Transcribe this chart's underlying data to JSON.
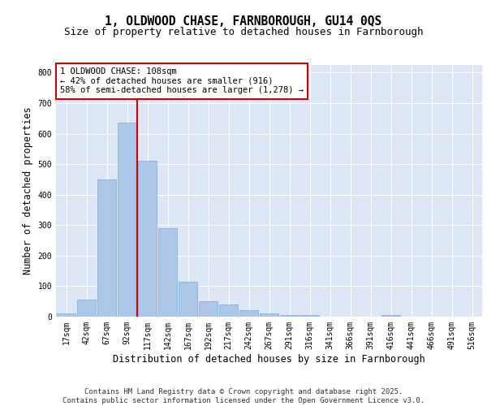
{
  "title_line1": "1, OLDWOOD CHASE, FARNBOROUGH, GU14 0QS",
  "title_line2": "Size of property relative to detached houses in Farnborough",
  "xlabel": "Distribution of detached houses by size in Farnborough",
  "ylabel": "Number of detached properties",
  "bar_color": "#aec6e8",
  "bar_edge_color": "#7baad4",
  "bg_color": "#dce6f5",
  "grid_color": "#ffffff",
  "categories": [
    "17sqm",
    "42sqm",
    "67sqm",
    "92sqm",
    "117sqm",
    "142sqm",
    "167sqm",
    "192sqm",
    "217sqm",
    "242sqm",
    "267sqm",
    "291sqm",
    "316sqm",
    "341sqm",
    "366sqm",
    "391sqm",
    "416sqm",
    "441sqm",
    "466sqm",
    "491sqm",
    "516sqm"
  ],
  "values": [
    10,
    55,
    450,
    635,
    510,
    290,
    115,
    50,
    40,
    20,
    10,
    5,
    5,
    0,
    0,
    0,
    5,
    0,
    0,
    0,
    0
  ],
  "ylim": [
    0,
    825
  ],
  "yticks": [
    0,
    100,
    200,
    300,
    400,
    500,
    600,
    700,
    800
  ],
  "vline_x": 3.5,
  "vline_color": "#cc0000",
  "annotation_text": "1 OLDWOOD CHASE: 108sqm\n← 42% of detached houses are smaller (916)\n58% of semi-detached houses are larger (1,278) →",
  "annotation_box_facecolor": "#ffffff",
  "annotation_box_edgecolor": "#cc0000",
  "footer_text": "Contains HM Land Registry data © Crown copyright and database right 2025.\nContains public sector information licensed under the Open Government Licence v3.0.",
  "title_fontsize": 10.5,
  "subtitle_fontsize": 9,
  "axis_label_fontsize": 8.5,
  "tick_fontsize": 7,
  "annotation_fontsize": 7.5,
  "footer_fontsize": 6.5
}
